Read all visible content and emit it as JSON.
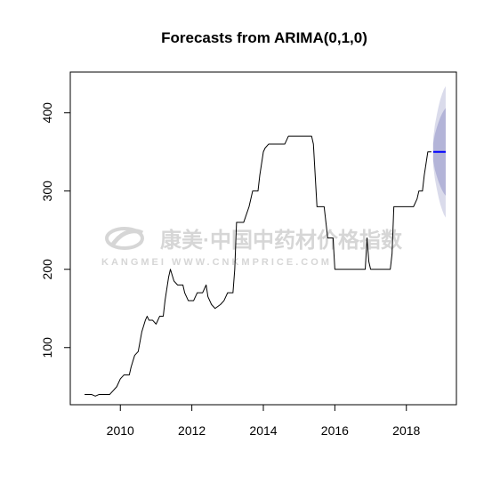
{
  "chart_data": {
    "type": "line",
    "title": "Forecasts from ARIMA(0,1,0)",
    "xlabel": "",
    "ylabel": "",
    "xlim": [
      2008.6,
      2019.4
    ],
    "ylim": [
      27,
      452
    ],
    "x_ticks": [
      "2010",
      "2012",
      "2014",
      "2016",
      "2018"
    ],
    "y_ticks": [
      "100",
      "200",
      "300",
      "400"
    ],
    "grid": false,
    "series": [
      {
        "role": "observed",
        "color": "#000000",
        "points": [
          [
            2009.0,
            40
          ],
          [
            2009.2,
            40
          ],
          [
            2009.3,
            38
          ],
          [
            2009.4,
            40
          ],
          [
            2009.7,
            40
          ],
          [
            2009.8,
            45
          ],
          [
            2009.9,
            50
          ],
          [
            2010.0,
            60
          ],
          [
            2010.1,
            65
          ],
          [
            2010.25,
            65
          ],
          [
            2010.3,
            75
          ],
          [
            2010.4,
            90
          ],
          [
            2010.5,
            95
          ],
          [
            2010.6,
            120
          ],
          [
            2010.7,
            135
          ],
          [
            2010.75,
            140
          ],
          [
            2010.8,
            135
          ],
          [
            2010.9,
            135
          ],
          [
            2011.0,
            130
          ],
          [
            2011.1,
            140
          ],
          [
            2011.2,
            140
          ],
          [
            2011.25,
            160
          ],
          [
            2011.35,
            190
          ],
          [
            2011.4,
            200
          ],
          [
            2011.5,
            185
          ],
          [
            2011.6,
            180
          ],
          [
            2011.75,
            180
          ],
          [
            2011.8,
            170
          ],
          [
            2011.9,
            160
          ],
          [
            2012.05,
            160
          ],
          [
            2012.15,
            170
          ],
          [
            2012.3,
            170
          ],
          [
            2012.4,
            180
          ],
          [
            2012.45,
            165
          ],
          [
            2012.55,
            155
          ],
          [
            2012.65,
            150
          ],
          [
            2012.8,
            155
          ],
          [
            2012.9,
            160
          ],
          [
            2013.0,
            170
          ],
          [
            2013.15,
            170
          ],
          [
            2013.2,
            200
          ],
          [
            2013.25,
            260
          ],
          [
            2013.45,
            260
          ],
          [
            2013.6,
            280
          ],
          [
            2013.7,
            300
          ],
          [
            2013.85,
            300
          ],
          [
            2013.9,
            320
          ],
          [
            2014.0,
            350
          ],
          [
            2014.05,
            355
          ],
          [
            2014.15,
            360
          ],
          [
            2014.6,
            360
          ],
          [
            2014.65,
            365
          ],
          [
            2014.7,
            370
          ],
          [
            2015.35,
            370
          ],
          [
            2015.4,
            360
          ],
          [
            2015.45,
            320
          ],
          [
            2015.5,
            280
          ],
          [
            2015.7,
            280
          ],
          [
            2015.75,
            260
          ],
          [
            2015.8,
            240
          ],
          [
            2015.95,
            240
          ],
          [
            2016.0,
            200
          ],
          [
            2016.2,
            200
          ],
          [
            2016.85,
            200
          ],
          [
            2016.9,
            240
          ],
          [
            2016.95,
            210
          ],
          [
            2017.0,
            200
          ],
          [
            2017.55,
            200
          ],
          [
            2017.6,
            220
          ],
          [
            2017.65,
            280
          ],
          [
            2018.2,
            280
          ],
          [
            2018.3,
            290
          ],
          [
            2018.35,
            300
          ],
          [
            2018.45,
            300
          ],
          [
            2018.5,
            320
          ],
          [
            2018.6,
            350
          ],
          [
            2018.7,
            350
          ]
        ]
      },
      {
        "role": "forecast",
        "color": "#0000ff",
        "x": [
          2018.75,
          2019.1
        ],
        "values": [
          350,
          350
        ]
      }
    ],
    "intervals": [
      {
        "level": 95,
        "color": "#dadbeb",
        "x": [
          2018.75,
          2018.8,
          2018.85,
          2018.9,
          2018.95,
          2019.0,
          2019.05,
          2019.1
        ],
        "lower": [
          333,
          315,
          303,
          292,
          283,
          276,
          270,
          266
        ],
        "upper": [
          367,
          385,
          397,
          408,
          417,
          424,
          430,
          434
        ]
      },
      {
        "level": 80,
        "color": "#b3b4d8",
        "x": [
          2018.75,
          2018.8,
          2018.85,
          2018.9,
          2018.95,
          2019.0,
          2019.05,
          2019.1
        ],
        "lower": [
          339,
          327,
          319,
          312,
          306,
          301,
          297,
          294
        ],
        "upper": [
          361,
          373,
          381,
          388,
          394,
          399,
          403,
          406
        ]
      }
    ]
  },
  "watermark": {
    "cn_text": "康美·中国中药材价格指数",
    "en_text": "KANGMEI WWW.CNKMPRICE.COM",
    "color": "#d6d6d6"
  }
}
